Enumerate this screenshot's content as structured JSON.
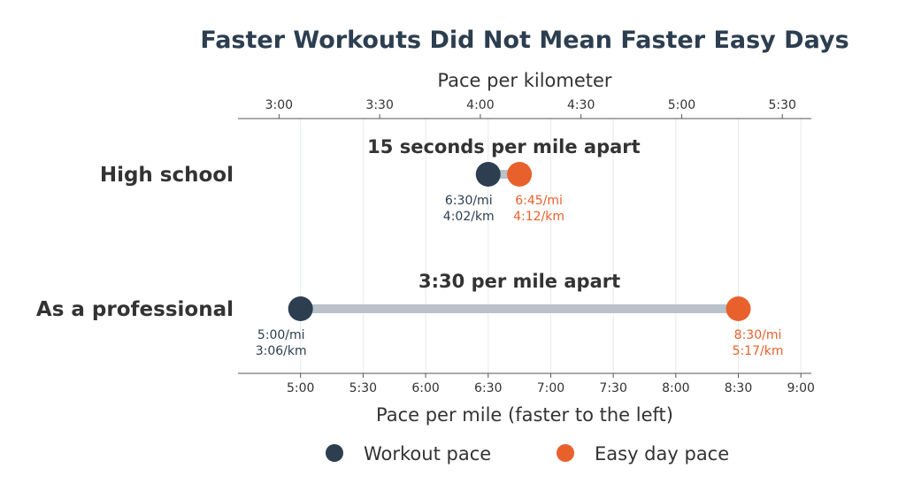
{
  "chart_data": {
    "type": "dumbbell",
    "title": "Faster Workouts Did Not Mean Faster Easy Days",
    "xlabel": "Pace per mile (faster to the left)",
    "x2label": "Pace per kilometer",
    "xlim_seconds_per_mile": [
      270,
      545
    ],
    "x_ticks": [
      "5:00",
      "5:30",
      "6:00",
      "6:30",
      "7:00",
      "7:30",
      "8:00",
      "8:30",
      "9:00"
    ],
    "x2_ticks": [
      "3:00",
      "3:30",
      "4:00",
      "4:30",
      "5:00",
      "5:30"
    ],
    "grid": true,
    "legend_position": "bottom",
    "series": [
      {
        "name": "Workout pace",
        "color": "#2c3e50"
      },
      {
        "name": "Easy day pace",
        "color": "#e8612c"
      }
    ],
    "rows": [
      {
        "label": "High school",
        "gap_label": "15 seconds per mile apart",
        "workout": {
          "pace": "6:30",
          "seconds_per_mile": 390,
          "mi_label": "6:30/mi",
          "km_label": "4:02/km"
        },
        "easy": {
          "pace": "6:45",
          "seconds_per_mile": 405,
          "mi_label": "6:45/mi",
          "km_label": "4:12/km"
        }
      },
      {
        "label": "As a professional",
        "gap_label": "3:30 per mile apart",
        "workout": {
          "pace": "5:00",
          "seconds_per_mile": 300,
          "mi_label": "5:00/mi",
          "km_label": "3:06/km"
        },
        "easy": {
          "pace": "8:30",
          "seconds_per_mile": 510,
          "mi_label": "8:30/mi",
          "km_label": "5:17/km"
        }
      }
    ],
    "connector_color": "#b9c2ca"
  }
}
